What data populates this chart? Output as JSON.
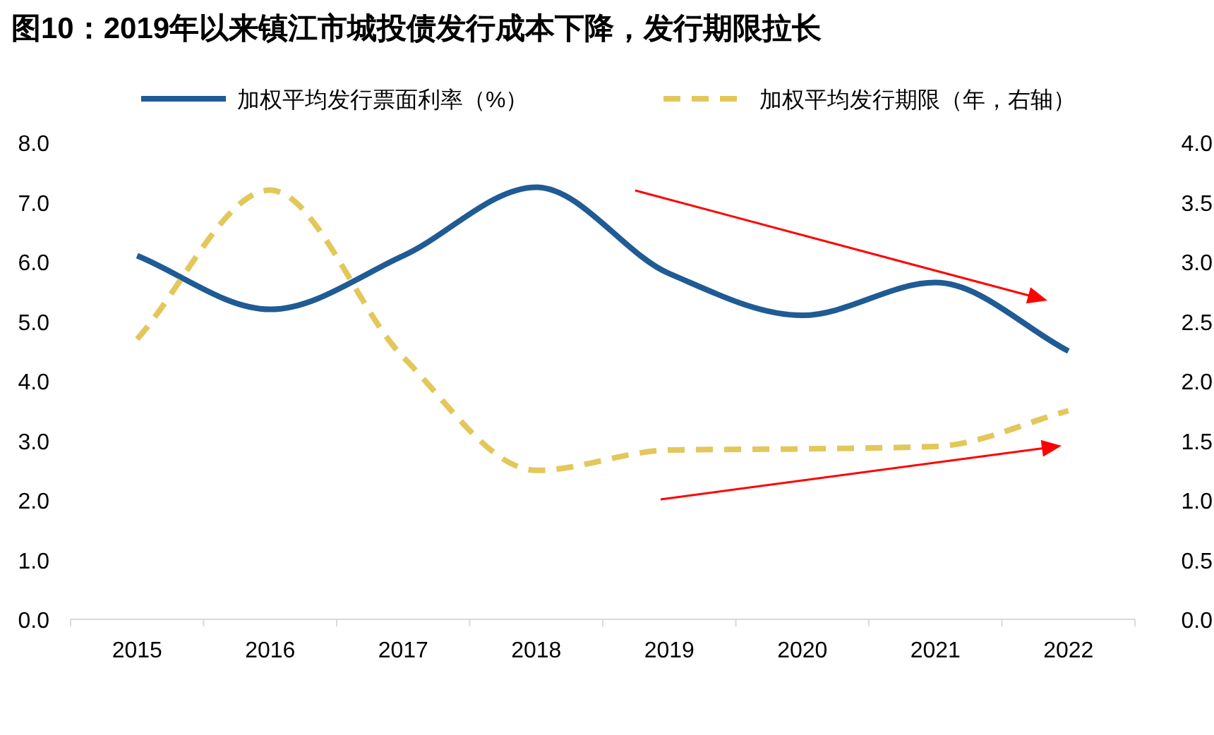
{
  "chart_data": {
    "type": "line",
    "title": "图10：2019年以来镇江市城投债发行成本下降，发行期限拉长",
    "categories": [
      "2015",
      "2016",
      "2017",
      "2018",
      "2019",
      "2020",
      "2021",
      "2022"
    ],
    "series": [
      {
        "name": "加权平均发行票面利率（%）",
        "color": "#1f5b94",
        "line_style": "solid",
        "values": [
          6.1,
          5.2,
          6.1,
          7.25,
          5.8,
          5.1,
          5.65,
          4.5
        ]
      },
      {
        "name": "加权平均发行期限（年，右轴）",
        "color": "#e3c75a",
        "line_style": "dashed",
        "axis": "y2",
        "values": [
          2.35,
          3.6,
          2.2,
          1.25,
          1.42,
          1.43,
          1.45,
          1.75
        ]
      }
    ],
    "ylim": [
      0,
      8
    ],
    "yticks": [
      {
        "value": 0,
        "label": "0.0"
      },
      {
        "value": 1,
        "label": "1.0"
      },
      {
        "value": 2,
        "label": "2.0"
      },
      {
        "value": 3,
        "label": "3.0"
      },
      {
        "value": 4,
        "label": "4.0"
      },
      {
        "value": 5,
        "label": "5.0"
      },
      {
        "value": 6,
        "label": "6.0"
      },
      {
        "value": 7,
        "label": "7.0"
      },
      {
        "value": 8,
        "label": "8.0"
      }
    ],
    "y2lim": [
      0,
      4
    ],
    "y2ticks": [
      {
        "value": 0,
        "label": "0.0"
      },
      {
        "value": 0.5,
        "label": "0.5"
      },
      {
        "value": 1,
        "label": "1.0"
      },
      {
        "value": 1.5,
        "label": "1.5"
      },
      {
        "value": 2,
        "label": "2.0"
      },
      {
        "value": 2.5,
        "label": "2.5"
      },
      {
        "value": 3,
        "label": "3.0"
      },
      {
        "value": 3.5,
        "label": "3.5"
      },
      {
        "value": 4,
        "label": "4.0"
      }
    ],
    "legend": "top"
  }
}
